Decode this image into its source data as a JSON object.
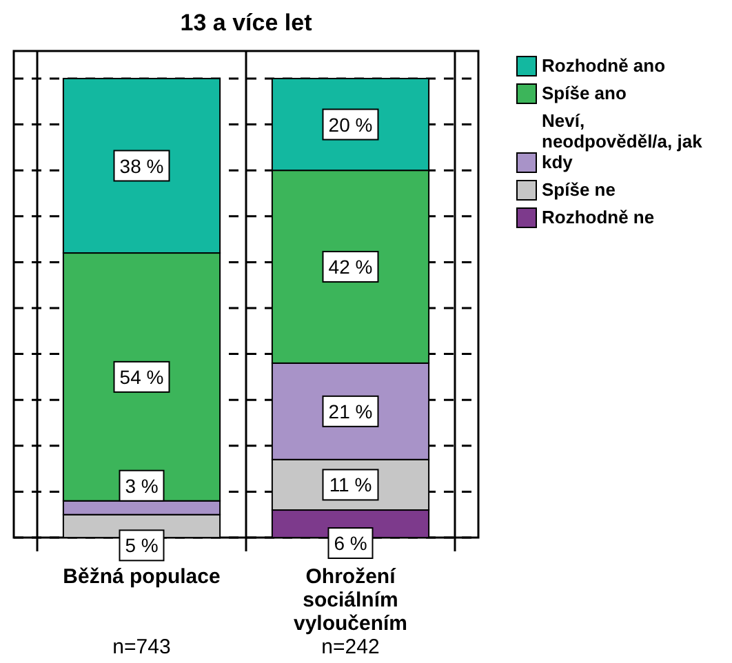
{
  "chart_data": {
    "type": "bar",
    "title": "13 a více let",
    "stacked": true,
    "categories": [
      "Běžná populace",
      "Ohrožení sociálním vyloučením"
    ],
    "series": [
      {
        "name": "Rozhodně ne",
        "color": "#7d3a8c",
        "values": [
          0,
          6
        ],
        "value_labels": [
          null,
          "6 %"
        ]
      },
      {
        "name": "Spíše ne",
        "color": "#c6c6c6",
        "values": [
          5,
          11
        ],
        "value_labels": [
          "5 %",
          "11 %"
        ]
      },
      {
        "name": "Neví, neodpověděl/a, jak kdy",
        "color": "#a893c8",
        "values": [
          3,
          21
        ],
        "value_labels": [
          "3 %",
          "21 %"
        ]
      },
      {
        "name": "Spíše ano",
        "color": "#3cb55a",
        "values": [
          54,
          42
        ],
        "value_labels": [
          "54 %",
          "42 %"
        ]
      },
      {
        "name": "Rozhodně ano",
        "color": "#13b8a0",
        "values": [
          38,
          20
        ],
        "value_labels": [
          "38 %",
          "20 %"
        ]
      }
    ],
    "annotations": [
      "n=743",
      "n=242"
    ],
    "ylim": [
      0,
      106
    ],
    "yticks": [
      {
        "value": 0,
        "label": null
      },
      {
        "value": 10,
        "label": null
      },
      {
        "value": 20,
        "label": null
      },
      {
        "value": 30,
        "label": null
      },
      {
        "value": 40,
        "label": null
      },
      {
        "value": 50,
        "label": null
      },
      {
        "value": 60,
        "label": null
      },
      {
        "value": 70,
        "label": null
      },
      {
        "value": 80,
        "label": null
      },
      {
        "value": 90,
        "label": null
      },
      {
        "value": 100,
        "label": null
      }
    ],
    "tick_labels": "x",
    "grid": "y",
    "legend": "right"
  }
}
